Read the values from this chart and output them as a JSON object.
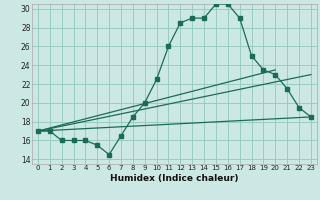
{
  "xlabel": "Humidex (Indice chaleur)",
  "bg_color": "#cce8e4",
  "grid_color": "#99ccc4",
  "line_color": "#1a6b5a",
  "xlim": [
    -0.5,
    23.5
  ],
  "ylim": [
    13.5,
    30.5
  ],
  "xticks": [
    0,
    1,
    2,
    3,
    4,
    5,
    6,
    7,
    8,
    9,
    10,
    11,
    12,
    13,
    14,
    15,
    16,
    17,
    18,
    19,
    20,
    21,
    22,
    23
  ],
  "yticks": [
    14,
    16,
    18,
    20,
    22,
    24,
    26,
    28,
    30
  ],
  "line1_x": [
    0,
    1,
    2,
    3,
    4,
    5,
    6,
    7,
    8,
    9,
    10,
    11,
    12,
    13,
    14,
    15,
    16,
    17,
    18,
    19,
    20,
    21,
    22,
    23
  ],
  "line1_y": [
    17,
    17,
    16,
    16,
    16,
    15.5,
    14.5,
    16.5,
    18.5,
    20,
    22.5,
    26,
    28.5,
    29,
    29,
    30.5,
    30.5,
    29,
    25,
    23.5,
    23,
    21.5,
    19.5,
    18.5
  ],
  "line2_x": [
    0,
    23
  ],
  "line2_y": [
    17,
    23
  ],
  "line3_x": [
    0,
    23
  ],
  "line3_y": [
    17,
    18.5
  ],
  "line4_x": [
    0,
    20
  ],
  "line4_y": [
    17,
    23.5
  ]
}
